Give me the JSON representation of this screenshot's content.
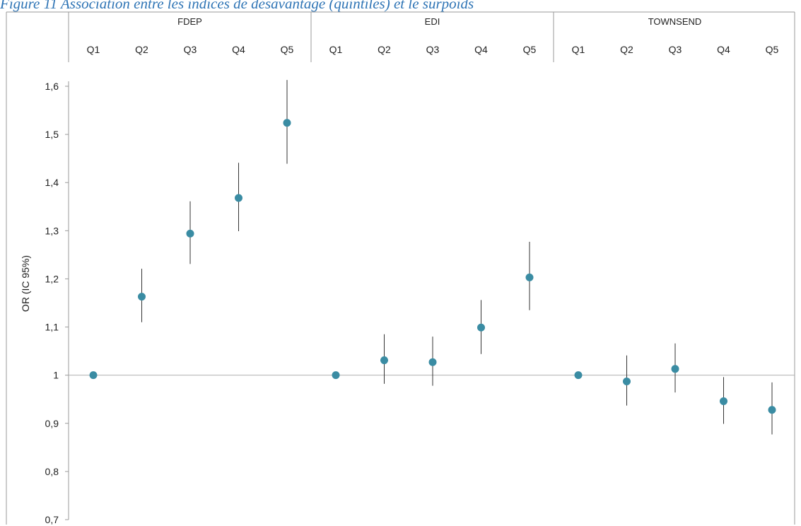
{
  "caption": "Figure 11 Association entre les indices de désavantage (quintiles) et le surpoids",
  "chart_data": {
    "type": "scatter",
    "ylabel": "OR (IC 95%)",
    "ylim": [
      0.7,
      1.6
    ],
    "yticks": [
      "0,7",
      "0,8",
      "0,9",
      "1",
      "1,1",
      "1,2",
      "1,3",
      "1,4",
      "1,5",
      "1,6"
    ],
    "reference_line": 1,
    "marker_color": "#3a8ca3",
    "groups": [
      {
        "name": "FDEP",
        "categories": [
          "Q1",
          "Q2",
          "Q3",
          "Q4",
          "Q5"
        ],
        "or": [
          1.0,
          1.163,
          1.294,
          1.368,
          1.524
        ],
        "ci_low": [
          null,
          1.11,
          1.231,
          1.299,
          1.439
        ],
        "ci_high": [
          null,
          1.221,
          1.361,
          1.441,
          1.613
        ]
      },
      {
        "name": "EDI",
        "categories": [
          "Q1",
          "Q2",
          "Q3",
          "Q4",
          "Q5"
        ],
        "or": [
          1.0,
          1.031,
          1.027,
          1.099,
          1.203
        ],
        "ci_low": [
          null,
          0.982,
          0.978,
          1.044,
          1.135
        ],
        "ci_high": [
          null,
          1.085,
          1.08,
          1.156,
          1.277
        ]
      },
      {
        "name": "TOWNSEND",
        "categories": [
          "Q1",
          "Q2",
          "Q3",
          "Q4",
          "Q5"
        ],
        "or": [
          1.0,
          0.987,
          1.013,
          0.946,
          0.928
        ],
        "ci_low": [
          null,
          0.937,
          0.964,
          0.899,
          0.877
        ],
        "ci_high": [
          null,
          1.041,
          1.066,
          0.996,
          0.985
        ]
      }
    ]
  }
}
